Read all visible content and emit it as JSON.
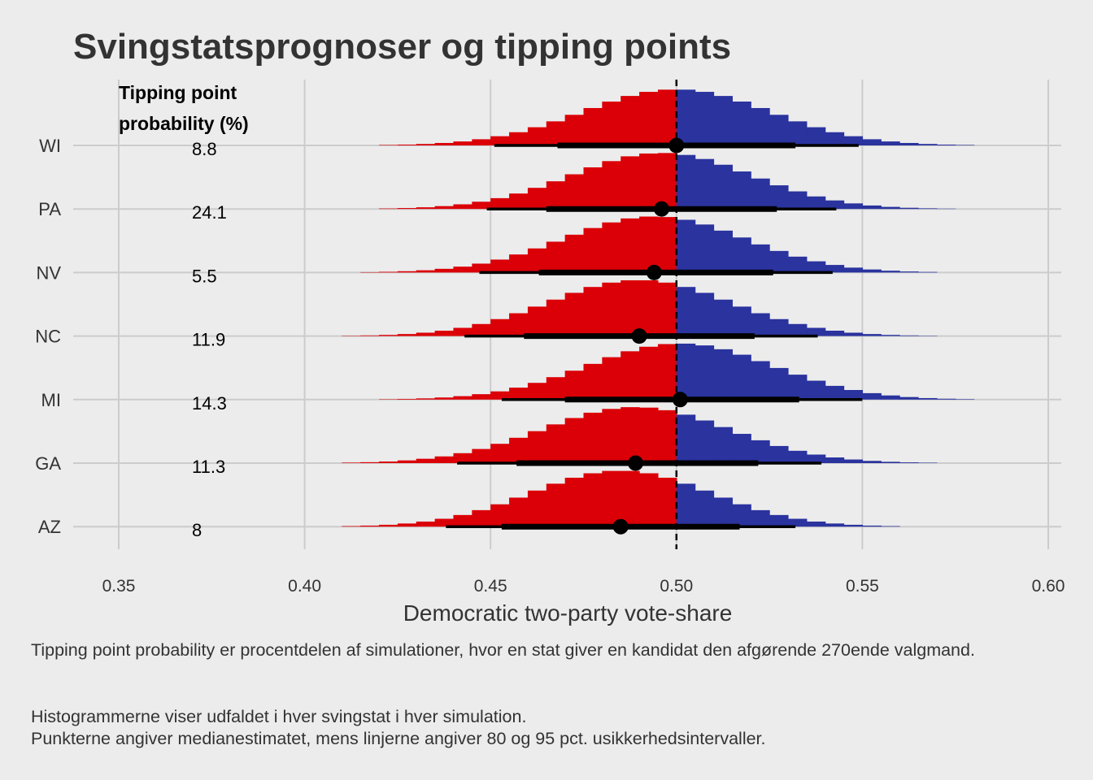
{
  "chart_data": {
    "type": "histogram-ridgeline",
    "title": "Svingstatsprognoser og tipping points",
    "xlabel": "Democratic two-party vote-share",
    "xlim": [
      0.34,
      0.605
    ],
    "x_ticks": [
      "0.35",
      "0.40",
      "0.45",
      "0.50",
      "0.55",
      "0.60"
    ],
    "x_tick_values": [
      0.35,
      0.4,
      0.45,
      0.5,
      0.55,
      0.6
    ],
    "reference_line": 0.5,
    "grid": true,
    "annotation_header": [
      "Tipping point",
      "probability (%)"
    ],
    "colors": {
      "rep": "#db0007",
      "dem": "#2a339e",
      "point": "#000000",
      "grid": "#cccccc"
    },
    "states": [
      {
        "name": "WI",
        "tipping_point": "8.8",
        "median": 0.5,
        "ci80": [
          0.468,
          0.532
        ],
        "ci95": [
          0.451,
          0.549
        ]
      },
      {
        "name": "PA",
        "tipping_point": "24.1",
        "median": 0.496,
        "ci80": [
          0.465,
          0.527
        ],
        "ci95": [
          0.449,
          0.543
        ]
      },
      {
        "name": "NV",
        "tipping_point": "5.5",
        "median": 0.494,
        "ci80": [
          0.463,
          0.526
        ],
        "ci95": [
          0.447,
          0.542
        ]
      },
      {
        "name": "NC",
        "tipping_point": "11.9",
        "median": 0.49,
        "ci80": [
          0.459,
          0.521
        ],
        "ci95": [
          0.443,
          0.538
        ]
      },
      {
        "name": "MI",
        "tipping_point": "14.3",
        "median": 0.501,
        "ci80": [
          0.47,
          0.533
        ],
        "ci95": [
          0.453,
          0.55
        ]
      },
      {
        "name": "GA",
        "tipping_point": "11.3",
        "median": 0.489,
        "ci80": [
          0.457,
          0.522
        ],
        "ci95": [
          0.441,
          0.539
        ]
      },
      {
        "name": "AZ",
        "tipping_point": "8",
        "median": 0.485,
        "ci80": [
          0.453,
          0.517
        ],
        "ci95": [
          0.438,
          0.532
        ]
      }
    ]
  },
  "caption": {
    "line1": "Tipping point probability er procentdelen af simulationer, hvor en stat giver en kandidat den afgørende 270ende valgmand.",
    "line2": "Histogrammerne viser udfaldet i hver svingstat i hver simulation.",
    "line3": "Punkterne angiver medianestimatet, mens linjerne angiver 80 og 95 pct. usikkerhedsintervaller."
  }
}
